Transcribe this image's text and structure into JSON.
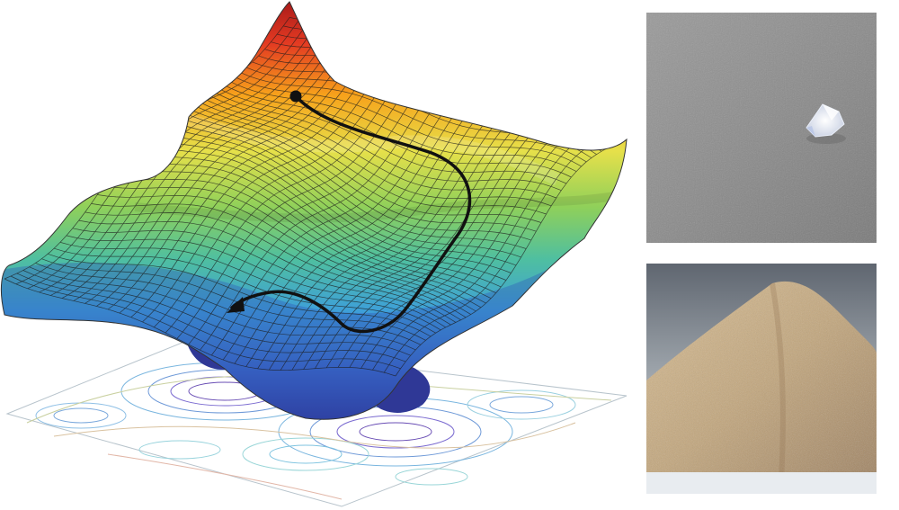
{
  "figure": {
    "panels": [
      {
        "id": "energy-landscape",
        "content": "3d-surface",
        "path_endpoints": [
          "start-dot",
          "end-arrow"
        ]
      },
      {
        "id": "crystal-photo",
        "content": "photo"
      },
      {
        "id": "powder-photo",
        "content": "photo"
      }
    ],
    "colors": {
      "surface_high": "#c21f1f",
      "surface_mid_high": "#f7a21b",
      "surface_mid": "#e6e04a",
      "surface_mid_low": "#6cc86a",
      "surface_low": "#3ea0d8",
      "surface_deep": "#3f48b0",
      "path": "#111111",
      "crystal_bg": "#8f8f8f",
      "powder": "#c6aa80"
    }
  }
}
